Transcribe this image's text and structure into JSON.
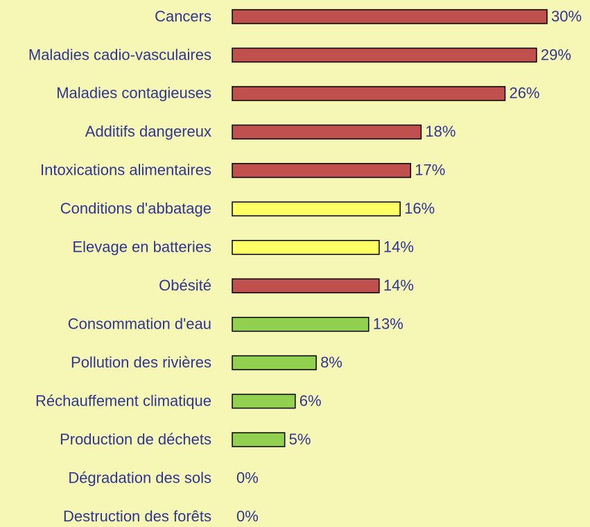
{
  "chart_data": {
    "type": "bar",
    "orientation": "horizontal",
    "categories": [
      "Cancers",
      "Maladies cadio-vasculaires",
      "Maladies contagieuses",
      "Additifs dangereux",
      "Intoxications alimentaires",
      "Conditions d'abbatage",
      "Elevage en batteries",
      "Obésité",
      "Consommation d'eau",
      "Pollution des rivières",
      "Réchauffement climatique",
      "Production de déchets",
      "Dégradation des sols",
      "Destruction des forêts"
    ],
    "values": [
      30,
      29,
      26,
      18,
      17,
      16,
      14,
      14,
      13,
      8,
      6,
      5,
      0,
      0
    ],
    "value_labels": [
      "30%",
      "29%",
      "26%",
      "18%",
      "17%",
      "16%",
      "14%",
      "14%",
      "13%",
      "8%",
      "6%",
      "5%",
      "0%",
      "0%"
    ],
    "colors": [
      "#c0504d",
      "#c0504d",
      "#c0504d",
      "#c0504d",
      "#c0504d",
      "#ffff66",
      "#ffff66",
      "#c0504d",
      "#92d050",
      "#92d050",
      "#92d050",
      "#92d050",
      "#92d050",
      "#92d050"
    ]
  }
}
